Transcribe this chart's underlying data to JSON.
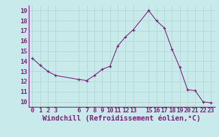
{
  "x": [
    0,
    1,
    2,
    3,
    6,
    7,
    8,
    9,
    10,
    11,
    12,
    13,
    15,
    16,
    17,
    18,
    19,
    20,
    21,
    22,
    23
  ],
  "y": [
    14.3,
    13.6,
    13.0,
    12.6,
    12.2,
    12.1,
    12.6,
    13.2,
    13.5,
    15.5,
    16.4,
    17.1,
    19.0,
    18.0,
    17.3,
    15.2,
    13.4,
    11.2,
    11.1,
    10.0,
    9.9
  ],
  "xlim": [
    -0.5,
    23.5
  ],
  "ylim": [
    9.5,
    19.5
  ],
  "xticks": [
    0,
    1,
    2,
    3,
    6,
    7,
    8,
    9,
    10,
    11,
    12,
    13,
    15,
    16,
    17,
    18,
    19,
    20,
    21,
    22,
    23
  ],
  "yticks": [
    10,
    11,
    12,
    13,
    14,
    15,
    16,
    17,
    18,
    19
  ],
  "xlabel": "Windchill (Refroidissement éolien,°C)",
  "line_color": "#7b1f7b",
  "marker": "+",
  "bg_color": "#c8eaea",
  "grid_color": "#b0d8d8",
  "tick_label_fontsize": 6.5,
  "xlabel_fontsize": 7.5
}
